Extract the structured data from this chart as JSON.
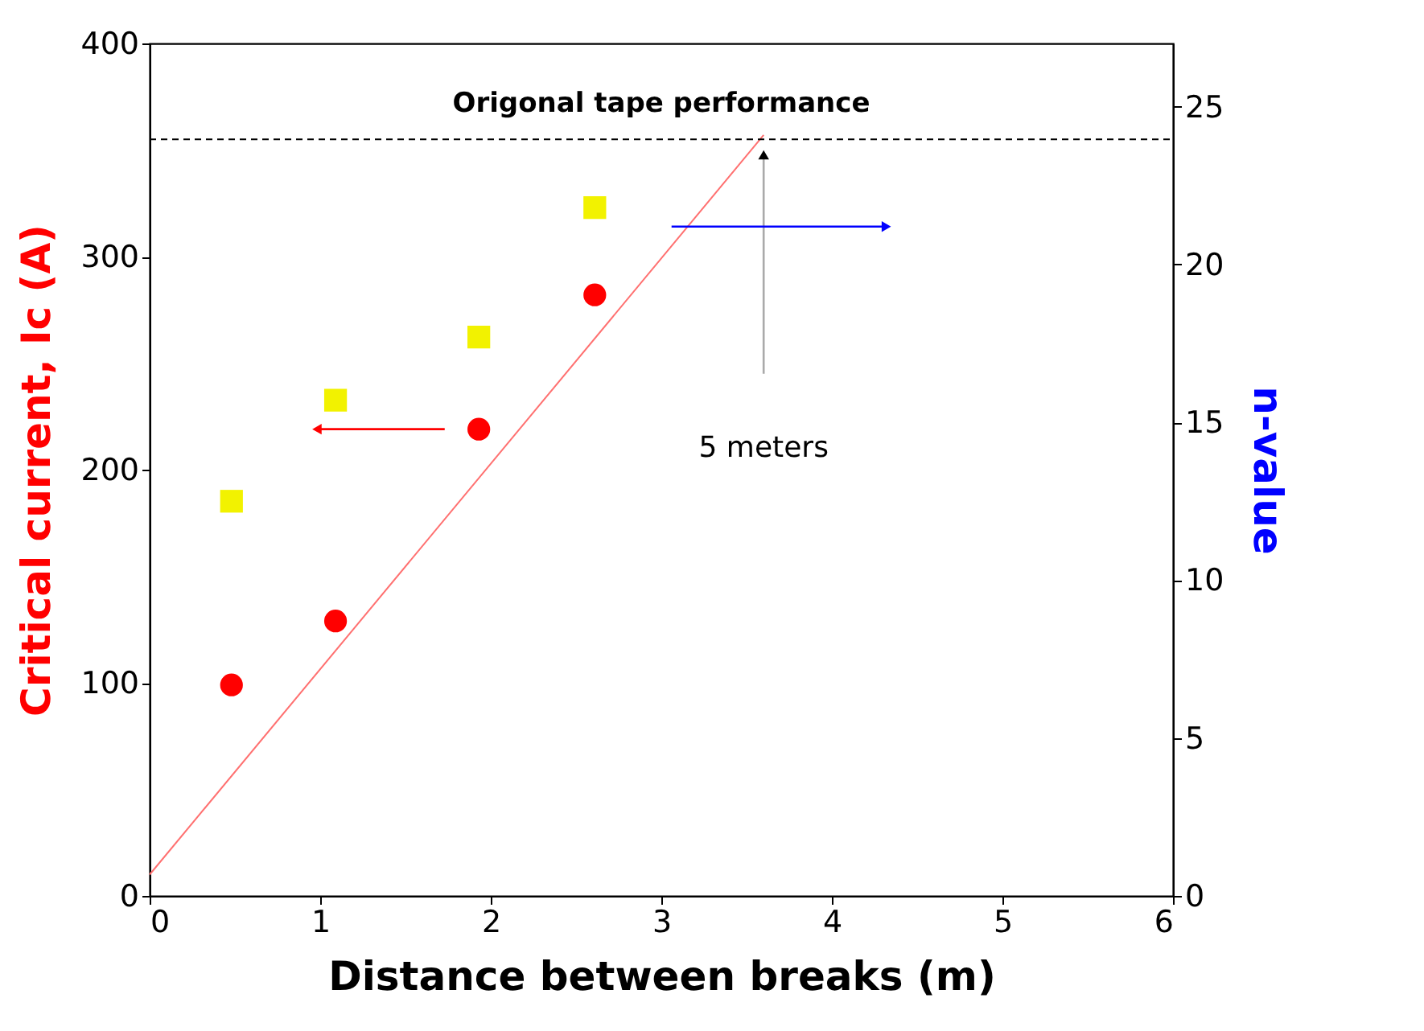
{
  "chart_data": {
    "type": "scatter",
    "xlabel": "Distance between breaks (m)",
    "ylabel": "Critical current, Ic (A)",
    "y2label": "n-value",
    "xlim": [
      0,
      6
    ],
    "xticks": [
      0,
      1,
      2,
      3,
      4,
      5,
      6
    ],
    "ylim": [
      0,
      400
    ],
    "yticks": [
      0,
      100,
      200,
      300,
      400
    ],
    "y2lim": [
      0,
      27
    ],
    "y2ticks": [
      0,
      5,
      10,
      15,
      20,
      25
    ],
    "grid": false,
    "series": [
      {
        "marker": "circle",
        "color": "#ff0000",
        "x": [
          0.48,
          1.09,
          1.93,
          2.61
        ],
        "values": [
          99,
          129,
          219,
          282
        ]
      },
      {
        "marker": "square",
        "color": "#f2f200",
        "axis": "y2",
        "x": [
          0.48,
          1.09,
          1.93,
          2.61
        ],
        "values": [
          12.5,
          15.7,
          17.7,
          21.8
        ]
      },
      {
        "type": "line",
        "color": "#ff7070",
        "x": [
          0,
          3.6
        ],
        "values": [
          10,
          357
        ]
      }
    ],
    "ref_lines": [
      {
        "axis": "y",
        "value": 355,
        "label": "Origonal tape performance",
        "color": "#000000",
        "line_style": "dashed"
      }
    ],
    "annotations": [
      "5 meters"
    ]
  }
}
